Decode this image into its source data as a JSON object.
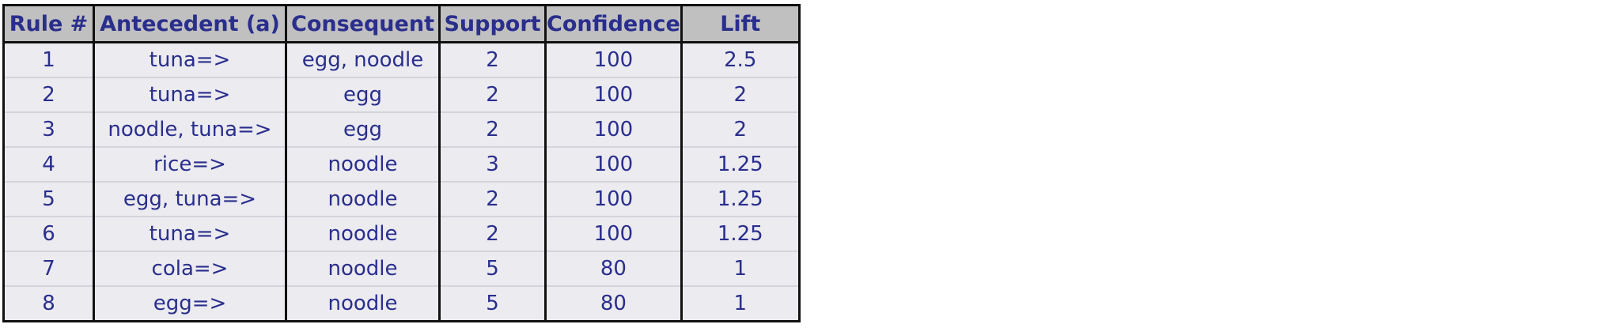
{
  "table": {
    "headers": {
      "rule": "Rule #",
      "antecedent": "Antecedent (a)",
      "consequent": "Consequent",
      "support": "Support",
      "confidence": "Confidence",
      "lift": "Lift"
    },
    "rows": [
      {
        "rule": "1",
        "antecedent": "tuna=>",
        "consequent": "egg, noodle",
        "support": "2",
        "confidence": "100",
        "lift": "2.5"
      },
      {
        "rule": "2",
        "antecedent": "tuna=>",
        "consequent": "egg",
        "support": "2",
        "confidence": "100",
        "lift": "2"
      },
      {
        "rule": "3",
        "antecedent": "noodle, tuna=>",
        "consequent": "egg",
        "support": "2",
        "confidence": "100",
        "lift": "2"
      },
      {
        "rule": "4",
        "antecedent": "rice=>",
        "consequent": "noodle",
        "support": "3",
        "confidence": "100",
        "lift": "1.25"
      },
      {
        "rule": "5",
        "antecedent": "egg, tuna=>",
        "consequent": "noodle",
        "support": "2",
        "confidence": "100",
        "lift": "1.25"
      },
      {
        "rule": "6",
        "antecedent": "tuna=>",
        "consequent": "noodle",
        "support": "2",
        "confidence": "100",
        "lift": "1.25"
      },
      {
        "rule": "7",
        "antecedent": "cola=>",
        "consequent": "noodle",
        "support": "5",
        "confidence": "80",
        "lift": "1"
      },
      {
        "rule": "8",
        "antecedent": "egg=>",
        "consequent": "noodle",
        "support": "5",
        "confidence": "80",
        "lift": "1"
      }
    ]
  },
  "colors": {
    "header_bg": "#c0c0c0",
    "cell_bg": "#ebebf0",
    "text": "#2a2e8c",
    "border": "#111111"
  }
}
